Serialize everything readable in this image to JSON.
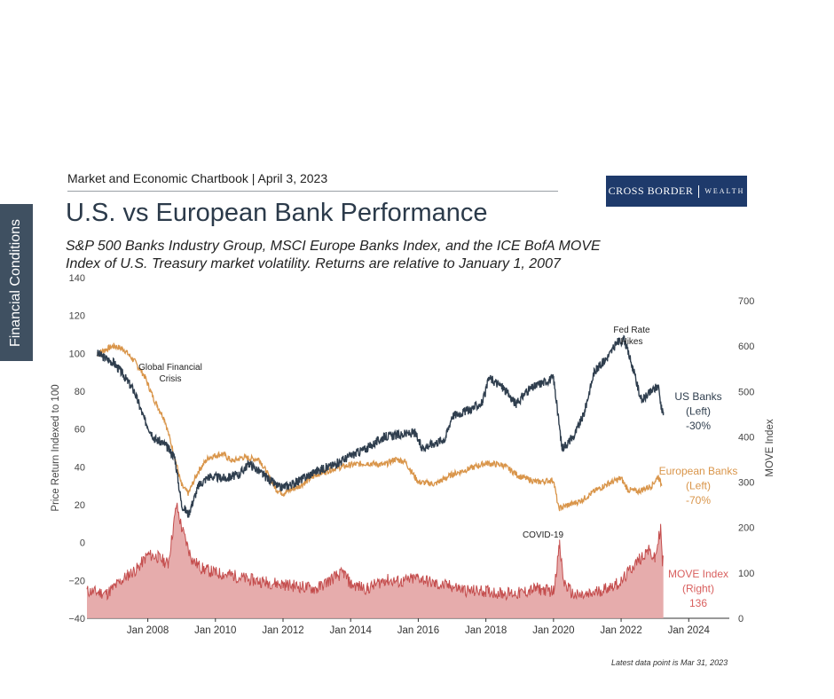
{
  "side_tab": "Financial Conditions",
  "header": "Market and Economic Chartbook | April 3, 2023",
  "logo": {
    "left": "CROSS BORDER",
    "right": "WEALTH"
  },
  "title": "U.S. vs European Bank Performance",
  "subtitle": "S&P 500 Banks Industry Group, MSCI Europe Banks Index, and the ICE BofA MOVE Index of U.S. Treasury market volatility. Returns are relative to January 1, 2007",
  "footnote": "Latest data point is Mar 31, 2023",
  "colors": {
    "us": "#2f3e4e",
    "eu": "#d9954a",
    "move_line": "#c44d4d",
    "move_fill": "#e3a3a3",
    "label_move": "#d9605f"
  },
  "chart_data": {
    "type": "line",
    "ylabel": "Price Return Indexed to 100",
    "y2label": "MOVE Index",
    "ylim": [
      -40,
      140
    ],
    "y2lim": [
      0,
      700
    ],
    "xlim": [
      2006.2,
      2025.2
    ],
    "yticks": [
      "140",
      "120",
      "100",
      "80",
      "60",
      "40",
      "20",
      "0",
      "−20",
      "−40"
    ],
    "y2ticks": [
      "700",
      "600",
      "500",
      "400",
      "300",
      "200",
      "100",
      "0"
    ],
    "xticks": [
      "Jan 2008",
      "Jan 2010",
      "Jan 2012",
      "Jan 2014",
      "Jan 2016",
      "Jan 2018",
      "Jan 2020",
      "Jan 2022",
      "Jan 2024"
    ],
    "annotations": [
      {
        "text": [
          "Global Financial",
          "Crisis"
        ]
      },
      {
        "text": [
          "Fed Rate",
          "Hikes"
        ]
      },
      {
        "text": [
          "COVID-19"
        ]
      }
    ],
    "series_labels": [
      {
        "series": "US Banks",
        "text": [
          "US Banks",
          "(Left)",
          "-30%"
        ]
      },
      {
        "series": "European Banks",
        "text": [
          "European Banks",
          "(Left)",
          "-70%"
        ]
      },
      {
        "series": "MOVE Index",
        "text": [
          "MOVE Index",
          "(Right)",
          "136"
        ]
      }
    ],
    "series": [
      {
        "name": "US Banks",
        "axis": "left",
        "x": [
          2006.5,
          2007.0,
          2007.3,
          2007.6,
          2007.9,
          2008.2,
          2008.5,
          2008.8,
          2009.0,
          2009.2,
          2009.5,
          2009.8,
          2010.3,
          2010.7,
          2011.0,
          2011.4,
          2011.9,
          2012.3,
          2012.7,
          2013.0,
          2013.5,
          2014.0,
          2014.5,
          2015.0,
          2015.5,
          2015.9,
          2016.1,
          2016.4,
          2016.8,
          2017.0,
          2017.5,
          2017.9,
          2018.1,
          2018.5,
          2018.9,
          2019.2,
          2019.6,
          2020.0,
          2020.15,
          2020.25,
          2020.6,
          2020.9,
          2021.2,
          2021.6,
          2021.9,
          2022.1,
          2022.3,
          2022.6,
          2022.9,
          2023.1,
          2023.2,
          2023.25
        ],
        "values": [
          100,
          95,
          88,
          80,
          65,
          55,
          52,
          45,
          20,
          15,
          30,
          35,
          34,
          36,
          42,
          36,
          29,
          31,
          35,
          38,
          41,
          46,
          50,
          56,
          57,
          58,
          50,
          52,
          55,
          67,
          70,
          74,
          87,
          82,
          73,
          80,
          84,
          87,
          65,
          50,
          56,
          68,
          90,
          98,
          106,
          107,
          95,
          75,
          80,
          83,
          70,
          69
        ]
      },
      {
        "name": "European Banks",
        "axis": "left",
        "x": [
          2006.5,
          2007.0,
          2007.3,
          2007.6,
          2007.9,
          2008.2,
          2008.5,
          2008.8,
          2009.0,
          2009.2,
          2009.5,
          2009.8,
          2010.2,
          2010.5,
          2010.8,
          2011.3,
          2011.8,
          2012.0,
          2012.5,
          2013.0,
          2013.5,
          2014.0,
          2014.5,
          2015.0,
          2015.3,
          2015.6,
          2016.0,
          2016.5,
          2017.0,
          2017.5,
          2018.0,
          2018.5,
          2019.0,
          2019.5,
          2020.0,
          2020.15,
          2020.3,
          2020.8,
          2021.2,
          2021.6,
          2022.0,
          2022.2,
          2022.5,
          2022.9,
          2023.1,
          2023.2
        ],
        "values": [
          100,
          104,
          102,
          96,
          88,
          75,
          65,
          45,
          30,
          26,
          38,
          45,
          47,
          43,
          45,
          44,
          28,
          26,
          30,
          36,
          39,
          41,
          42,
          41,
          44,
          43,
          32,
          31,
          36,
          39,
          42,
          41,
          35,
          32,
          33,
          18,
          19,
          22,
          27,
          31,
          34,
          28,
          27,
          30,
          35,
          30
        ]
      },
      {
        "name": "MOVE Index",
        "axis": "right",
        "x": [
          2006.2,
          2006.8,
          2007.4,
          2007.7,
          2008.0,
          2008.3,
          2008.6,
          2008.85,
          2009.0,
          2009.3,
          2009.6,
          2010.0,
          2010.5,
          2011.0,
          2011.5,
          2012.0,
          2012.5,
          2013.0,
          2013.5,
          2013.8,
          2014.0,
          2014.5,
          2015.0,
          2015.5,
          2016.0,
          2016.5,
          2017.0,
          2017.5,
          2018.0,
          2018.5,
          2019.0,
          2019.5,
          2020.0,
          2020.18,
          2020.3,
          2020.6,
          2021.0,
          2021.5,
          2022.0,
          2022.3,
          2022.6,
          2022.8,
          2023.0,
          2023.17,
          2023.22,
          2023.25
        ],
        "values": [
          60,
          55,
          95,
          110,
          140,
          135,
          120,
          250,
          200,
          130,
          110,
          100,
          95,
          85,
          80,
          75,
          70,
          65,
          90,
          100,
          75,
          65,
          85,
          80,
          90,
          75,
          70,
          60,
          60,
          55,
          55,
          65,
          60,
          160,
          80,
          50,
          50,
          65,
          80,
          110,
          135,
          150,
          130,
          200,
          120,
          136
        ]
      }
    ]
  }
}
